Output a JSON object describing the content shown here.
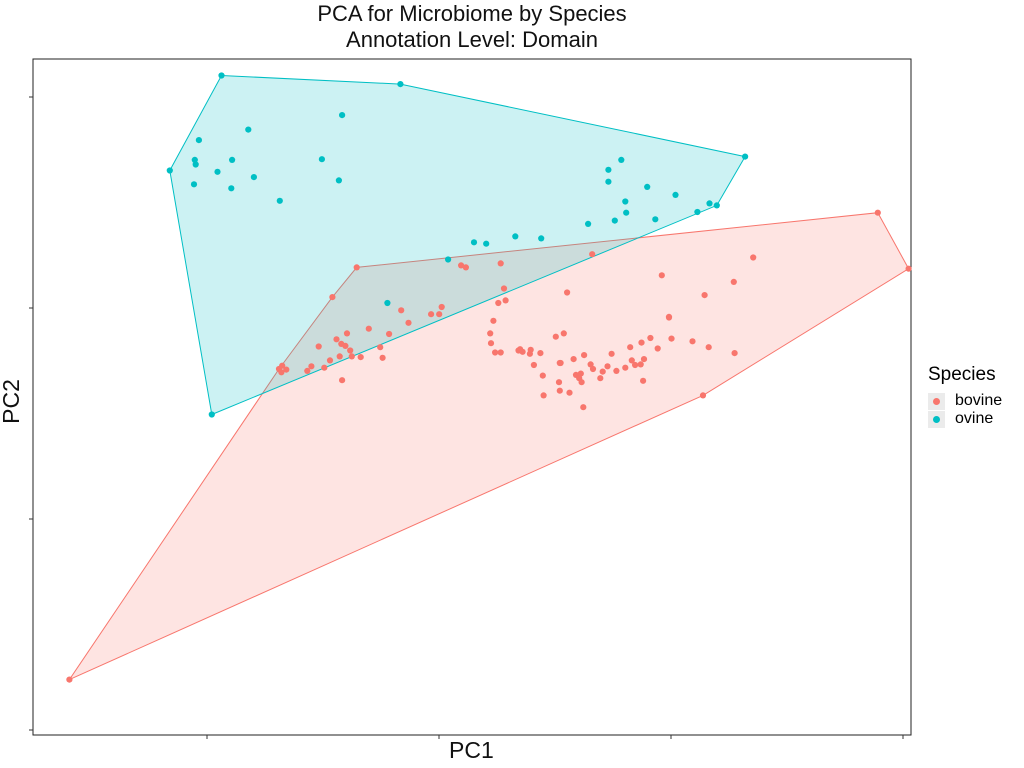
{
  "chart_data": {
    "type": "scatter",
    "title": "PCA for Microbiome by Species",
    "subtitle": "Annotation Level: Domain",
    "xlabel": "PC1",
    "ylabel": "PC2",
    "xlim": [
      -0.045,
      1.04
    ],
    "ylim": [
      -0.045,
      0.98
    ],
    "grid": false,
    "x_tick_labels_shown": false,
    "y_tick_labels_shown": false,
    "legend": {
      "title": "Species",
      "placement": "right"
    },
    "hulls": true,
    "series": [
      {
        "name": "bovine",
        "color": "#F8766D",
        "points": [
          [
            0.355,
            0.664
          ],
          [
            0.484,
            0.667
          ],
          [
            0.49,
            0.664
          ],
          [
            0.533,
            0.67
          ],
          [
            0.537,
            0.632
          ],
          [
            0.325,
            0.619
          ],
          [
            0.46,
            0.604
          ],
          [
            0.539,
            0.614
          ],
          [
            0.457,
            0.593
          ],
          [
            0.53,
            0.61
          ],
          [
            0.41,
            0.599
          ],
          [
            0.447,
            0.593
          ],
          [
            0.419,
            0.58
          ],
          [
            0.524,
            0.583
          ],
          [
            0.37,
            0.571
          ],
          [
            0.395,
            0.563
          ],
          [
            0.343,
            0.564
          ],
          [
            0.33,
            0.555
          ],
          [
            0.336,
            0.548
          ],
          [
            0.341,
            0.545
          ],
          [
            0.52,
            0.564
          ],
          [
            0.384,
            0.543
          ],
          [
            0.308,
            0.544
          ],
          [
            0.521,
            0.549
          ],
          [
            0.526,
            0.535
          ],
          [
            0.533,
            0.535
          ],
          [
            0.555,
            0.538
          ],
          [
            0.557,
            0.54
          ],
          [
            0.56,
            0.536
          ],
          [
            0.582,
            0.534
          ],
          [
            0.611,
            0.564
          ],
          [
            0.569,
            0.533
          ],
          [
            0.57,
            0.539
          ],
          [
            0.615,
            0.626
          ],
          [
            0.646,
            0.684
          ],
          [
            0.732,
            0.652
          ],
          [
            0.707,
            0.55
          ],
          [
            0.693,
            0.543
          ],
          [
            0.744,
            0.556
          ],
          [
            0.695,
            0.523
          ],
          [
            0.636,
            0.531
          ],
          [
            0.623,
            0.525
          ],
          [
            0.601,
            0.559
          ],
          [
            0.607,
            0.519
          ],
          [
            0.574,
            0.516
          ],
          [
            0.334,
            0.529
          ],
          [
            0.347,
            0.538
          ],
          [
            0.322,
            0.523
          ],
          [
            0.349,
            0.529
          ],
          [
            0.315,
            0.512
          ],
          [
            0.299,
            0.514
          ],
          [
            0.263,
            0.515
          ],
          [
            0.259,
            0.51
          ],
          [
            0.262,
            0.505
          ],
          [
            0.294,
            0.507
          ],
          [
            0.268,
            0.509
          ],
          [
            0.36,
            0.528
          ],
          [
            0.387,
            0.527
          ],
          [
            0.585,
            0.5
          ],
          [
            0.626,
            0.501
          ],
          [
            0.632,
            0.503
          ],
          [
            0.659,
            0.506
          ],
          [
            0.665,
            0.514
          ],
          [
            0.687,
            0.512
          ],
          [
            0.699,
            0.516
          ],
          [
            0.676,
            0.507
          ],
          [
            0.647,
            0.51
          ],
          [
            0.606,
            0.519
          ],
          [
            0.644,
            0.517
          ],
          [
            0.337,
            0.493
          ],
          [
            0.605,
            0.49
          ],
          [
            0.633,
            0.49
          ],
          [
            0.63,
            0.496
          ],
          [
            0.656,
            0.496
          ],
          [
            0.709,
            0.492
          ],
          [
            0.586,
            0.47
          ],
          [
            0.822,
            0.534
          ],
          [
            0.999,
            0.747
          ],
          [
            1.037,
            0.662
          ],
          [
            0.821,
            0.642
          ],
          [
            0.845,
            0.679
          ],
          [
            0.785,
            0.622
          ],
          [
            0,
            0.039
          ],
          [
            0.783,
            0.47
          ],
          [
            0.618,
            0.474
          ],
          [
            0.606,
            0.477
          ],
          [
            0.635,
            0.452
          ],
          [
            0.727,
            0.541
          ],
          [
            0.718,
            0.557
          ],
          [
            0.706,
            0.517
          ],
          [
            0.79,
            0.543
          ],
          [
            0.67,
            0.533
          ],
          [
            0.71,
            0.525
          ],
          [
            0.741,
            0.588
          ],
          [
            0.77,
            0.552
          ],
          [
            0.741,
            0.589
          ]
        ]
      },
      {
        "name": "ovine",
        "color": "#00BFC4",
        "points": [
          [
            0.188,
            0.955
          ],
          [
            0.409,
            0.942
          ],
          [
            0.337,
            0.895
          ],
          [
            0.221,
            0.873
          ],
          [
            0.16,
            0.857
          ],
          [
            0.156,
            0.82
          ],
          [
            0.155,
            0.827
          ],
          [
            0.201,
            0.827
          ],
          [
            0.312,
            0.828
          ],
          [
            0.124,
            0.811
          ],
          [
            0.183,
            0.809
          ],
          [
            0.228,
            0.801
          ],
          [
            0.333,
            0.796
          ],
          [
            0.154,
            0.79
          ],
          [
            0.2,
            0.784
          ],
          [
            0.26,
            0.765
          ],
          [
            0.682,
            0.827
          ],
          [
            0.835,
            0.832
          ],
          [
            0.666,
            0.812
          ],
          [
            0.666,
            0.794
          ],
          [
            0.714,
            0.786
          ],
          [
            0.749,
            0.774
          ],
          [
            0.687,
            0.764
          ],
          [
            0.791,
            0.761
          ],
          [
            0.8,
            0.758
          ],
          [
            0.776,
            0.748
          ],
          [
            0.688,
            0.747
          ],
          [
            0.724,
            0.737
          ],
          [
            0.674,
            0.735
          ],
          [
            0.641,
            0.73
          ],
          [
            0.551,
            0.711
          ],
          [
            0.583,
            0.708
          ],
          [
            0.515,
            0.7
          ],
          [
            0.5,
            0.702
          ],
          [
            0.468,
            0.676
          ],
          [
            0.393,
            0.61
          ],
          [
            0.176,
            0.441
          ]
        ]
      }
    ]
  }
}
